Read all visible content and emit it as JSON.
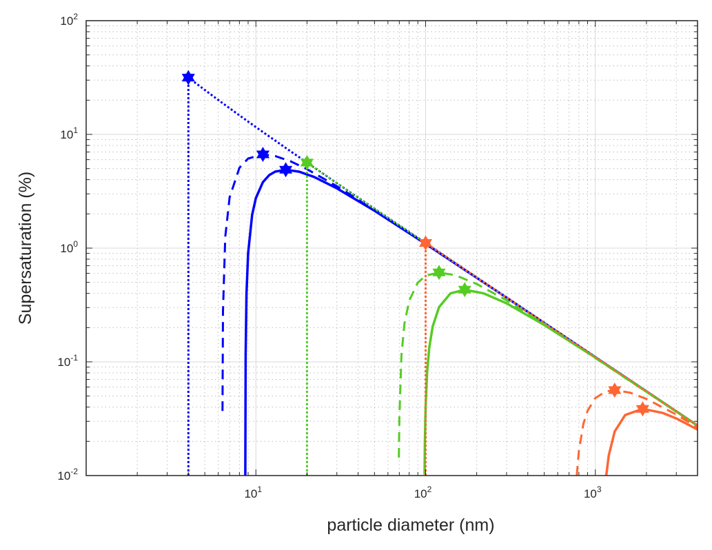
{
  "chart_data": {
    "type": "line",
    "title": "",
    "xlabel": "particle diameter (nm)",
    "ylabel": "Supersaturation (%)",
    "xscale": "log",
    "yscale": "log",
    "xlim": [
      1,
      4000
    ],
    "ylim": [
      0.01,
      100
    ],
    "grid": true,
    "minor_grid": true,
    "legend": "none",
    "x_tick_labels": [
      {
        "base": "10",
        "exp": "1",
        "value": 10
      },
      {
        "base": "10",
        "exp": "2",
        "value": 100
      },
      {
        "base": "10",
        "exp": "3",
        "value": 1000
      }
    ],
    "y_tick_labels": [
      {
        "base": "10",
        "exp": "-2",
        "value": 0.01
      },
      {
        "base": "10",
        "exp": "-1",
        "value": 0.1
      },
      {
        "base": "10",
        "exp": "0",
        "value": 1
      },
      {
        "base": "10",
        "exp": "1",
        "value": 10
      },
      {
        "base": "10",
        "exp": "2",
        "value": 100
      }
    ],
    "colors": {
      "blue": "#0000FF",
      "green": "#55CC22",
      "orange": "#FF6633"
    },
    "series": [
      {
        "color": "#0000FF",
        "style": "dotted",
        "x": [
          4,
          4,
          5,
          6,
          8,
          10,
          15,
          20,
          30,
          50,
          100,
          300,
          1000,
          4000
        ],
        "y": [
          0.01,
          31.6,
          24.6,
          20.1,
          14.7,
          11.6,
          7.6,
          5.65,
          3.73,
          2.22,
          1.11,
          0.367,
          0.11,
          0.0275
        ],
        "critical": [
          4,
          31.6
        ]
      },
      {
        "color": "#0000FF",
        "style": "dashed",
        "x": [
          6.355,
          6.4,
          6.6,
          7,
          8,
          9,
          11,
          13,
          16,
          20,
          30,
          50,
          100,
          300,
          1000,
          4000
        ],
        "y": [
          0.037,
          0.277,
          1.25,
          2.79,
          5.09,
          6.14,
          6.67,
          6.45,
          5.8,
          4.95,
          3.5,
          2.16,
          1.096,
          0.367,
          0.11,
          0.0275
        ],
        "critical": [
          11,
          6.67
        ]
      },
      {
        "color": "#0000FF",
        "style": "solid",
        "x": [
          8.663,
          8.7,
          8.8,
          9,
          9.5,
          10,
          11,
          12,
          13,
          15,
          18,
          22,
          30,
          50,
          100,
          300,
          1000,
          4000
        ],
        "y": [
          0.01,
          0.115,
          0.394,
          0.905,
          1.96,
          2.75,
          3.8,
          4.39,
          4.71,
          4.89,
          4.7,
          4.23,
          3.36,
          2.13,
          1.09,
          0.367,
          0.11,
          0.0275
        ],
        "critical": [
          15,
          4.89
        ]
      },
      {
        "color": "#55CC22",
        "style": "dotted",
        "x": [
          20,
          20,
          30,
          50,
          100,
          300,
          1000,
          4000
        ],
        "y": [
          0.01,
          5.65,
          3.73,
          2.22,
          1.11,
          0.367,
          0.11,
          0.0275
        ],
        "critical": [
          20,
          5.65
        ]
      },
      {
        "color": "#55CC22",
        "style": "dashed",
        "x": [
          69.6,
          70,
          72,
          75,
          80,
          90,
          100,
          120,
          150,
          200,
          300,
          500,
          1000,
          4000
        ],
        "y": [
          0.0144,
          0.032,
          0.113,
          0.215,
          0.344,
          0.498,
          0.572,
          0.611,
          0.577,
          0.484,
          0.347,
          0.216,
          0.108,
          0.0275
        ],
        "critical": [
          120,
          0.611
        ]
      },
      {
        "color": "#55CC22",
        "style": "solid",
        "x": [
          98.6,
          99,
          100,
          102,
          105,
          110,
          120,
          140,
          170,
          220,
          300,
          500,
          1000,
          4000
        ],
        "y": [
          0.0102,
          0.019,
          0.04,
          0.08,
          0.132,
          0.204,
          0.303,
          0.4,
          0.431,
          0.4,
          0.327,
          0.211,
          0.109,
          0.0275
        ],
        "critical": [
          170,
          0.431
        ]
      },
      {
        "color": "#FF6633",
        "style": "dotted",
        "x": [
          100,
          100,
          300,
          1000,
          4000
        ],
        "y": [
          0.01,
          1.11,
          0.367,
          0.11,
          0.0275
        ],
        "critical": [
          100,
          1.11
        ]
      },
      {
        "color": "#FF6633",
        "style": "dashed",
        "x": [
          777,
          800,
          850,
          900,
          1000,
          1150,
          1300,
          1600,
          2000,
          3000,
          4000
        ],
        "y": [
          0.01,
          0.01646,
          0.0285,
          0.0372,
          0.048,
          0.0549,
          0.0564,
          0.0536,
          0.0472,
          0.0344,
          0.0265
        ],
        "critical": [
          1300,
          0.0564
        ]
      },
      {
        "color": "#FF6633",
        "style": "solid",
        "x": [
          1160,
          1200,
          1300,
          1500,
          1900,
          2500,
          3000,
          4000
        ],
        "y": [
          0.01002,
          0.015,
          0.0244,
          0.0341,
          0.0386,
          0.0355,
          0.0318,
          0.0254
        ],
        "critical": [
          1900,
          0.0386
        ]
      }
    ]
  }
}
